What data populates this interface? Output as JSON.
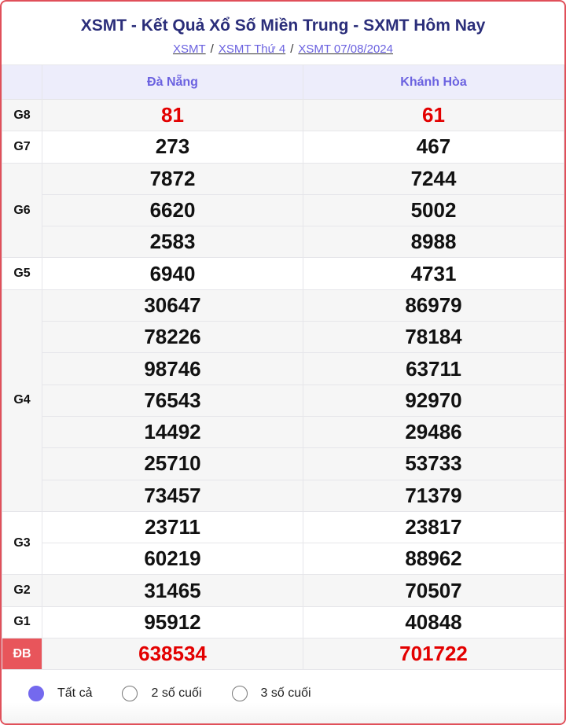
{
  "header": {
    "title": "XSMT - Kết Quả Xổ Số Miền Trung - SXMT Hôm Nay",
    "breadcrumbs": [
      "XSMT",
      "XSMT Thứ 4",
      "XSMT 07/08/2024"
    ],
    "separator": "/"
  },
  "table": {
    "columns": [
      "Đà Nẵng",
      "Khánh Hòa"
    ],
    "prizes": [
      {
        "label": "G8",
        "rows": [
          [
            "81",
            "61"
          ]
        ]
      },
      {
        "label": "G7",
        "rows": [
          [
            "273",
            "467"
          ]
        ]
      },
      {
        "label": "G6",
        "rows": [
          [
            "7872",
            "7244"
          ],
          [
            "6620",
            "5002"
          ],
          [
            "2583",
            "8988"
          ]
        ]
      },
      {
        "label": "G5",
        "rows": [
          [
            "6940",
            "4731"
          ]
        ]
      },
      {
        "label": "G4",
        "rows": [
          [
            "30647",
            "86979"
          ],
          [
            "78226",
            "78184"
          ],
          [
            "98746",
            "63711"
          ],
          [
            "76543",
            "92970"
          ],
          [
            "14492",
            "29486"
          ],
          [
            "25710",
            "53733"
          ],
          [
            "73457",
            "71379"
          ]
        ]
      },
      {
        "label": "G3",
        "rows": [
          [
            "23711",
            "23817"
          ],
          [
            "60219",
            "88962"
          ]
        ]
      },
      {
        "label": "G2",
        "rows": [
          [
            "31465",
            "70507"
          ]
        ]
      },
      {
        "label": "G1",
        "rows": [
          [
            "95912",
            "40848"
          ]
        ]
      },
      {
        "label": "ĐB",
        "rows": [
          [
            "638534",
            "701722"
          ]
        ]
      }
    ]
  },
  "filter": {
    "options": [
      "Tất cả",
      "2 số cuối",
      "3 số cuối"
    ],
    "selected": "Tất cả"
  },
  "colors": {
    "accent": "#7469ee",
    "special": "#e30000",
    "border": "#e0505a",
    "title": "#2b2e7a"
  }
}
